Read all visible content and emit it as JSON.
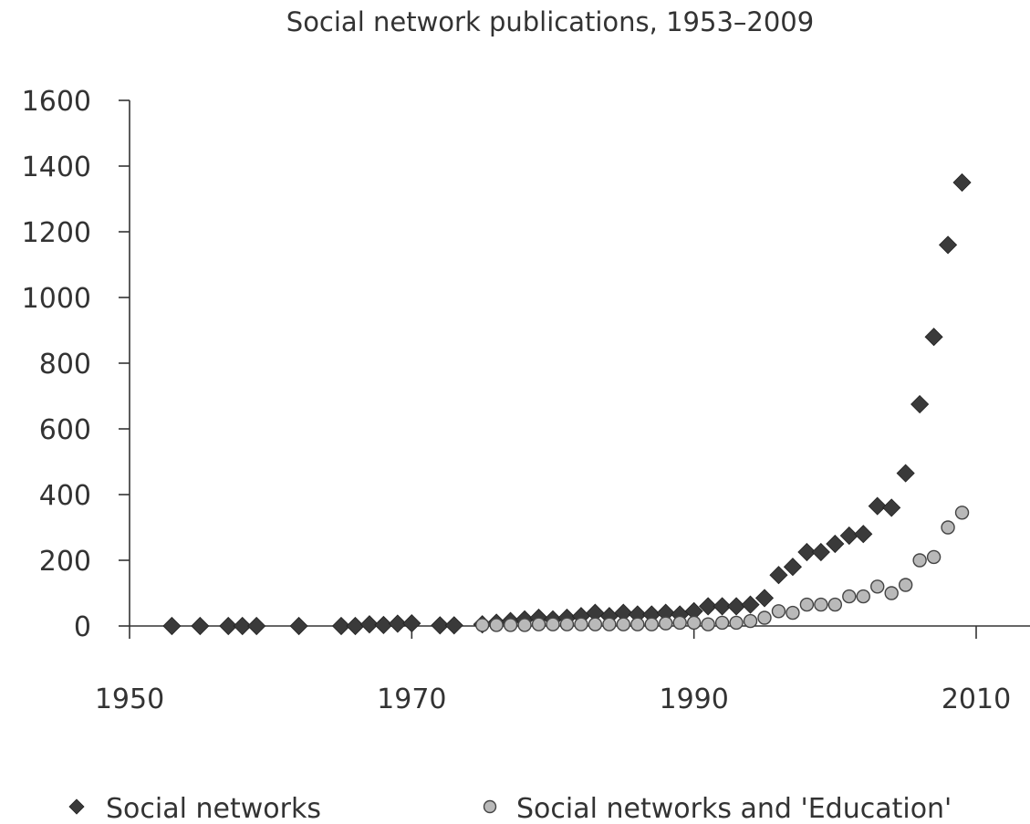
{
  "chart_data": {
    "type": "scatter",
    "title": "Social network publications, 1953–2009",
    "xlabel": "",
    "ylabel": "",
    "xlim": [
      1950,
      2015
    ],
    "ylim": [
      0,
      1600
    ],
    "x_ticks": [
      1950,
      1970,
      1990,
      2010
    ],
    "y_ticks": [
      0,
      200,
      400,
      600,
      800,
      1000,
      1200,
      1400,
      1600
    ],
    "grid": false,
    "legend_position": "bottom",
    "series": [
      {
        "name": "Social networks",
        "marker": "diamond",
        "color": "#3a3a3a",
        "points": [
          [
            1953,
            0
          ],
          [
            1955,
            0
          ],
          [
            1957,
            0
          ],
          [
            1958,
            0
          ],
          [
            1959,
            0
          ],
          [
            1962,
            0
          ],
          [
            1965,
            0
          ],
          [
            1966,
            0
          ],
          [
            1967,
            5
          ],
          [
            1968,
            3
          ],
          [
            1969,
            7
          ],
          [
            1970,
            8
          ],
          [
            1972,
            2
          ],
          [
            1973,
            2
          ],
          [
            1975,
            5
          ],
          [
            1976,
            10
          ],
          [
            1977,
            15
          ],
          [
            1978,
            20
          ],
          [
            1979,
            25
          ],
          [
            1980,
            20
          ],
          [
            1981,
            25
          ],
          [
            1982,
            30
          ],
          [
            1983,
            40
          ],
          [
            1984,
            30
          ],
          [
            1985,
            40
          ],
          [
            1986,
            35
          ],
          [
            1987,
            35
          ],
          [
            1988,
            40
          ],
          [
            1989,
            35
          ],
          [
            1990,
            45
          ],
          [
            1991,
            60
          ],
          [
            1992,
            60
          ],
          [
            1993,
            60
          ],
          [
            1994,
            65
          ],
          [
            1995,
            85
          ],
          [
            1996,
            155
          ],
          [
            1997,
            180
          ],
          [
            1998,
            225
          ],
          [
            1999,
            225
          ],
          [
            2000,
            250
          ],
          [
            2001,
            275
          ],
          [
            2002,
            280
          ],
          [
            2003,
            365
          ],
          [
            2004,
            360
          ],
          [
            2005,
            465
          ],
          [
            2006,
            675
          ],
          [
            2007,
            880
          ],
          [
            2008,
            1160
          ],
          [
            2009,
            1350
          ]
        ]
      },
      {
        "name": "Social networks and 'Education'",
        "marker": "circle",
        "color": "#b9b9b9",
        "points": [
          [
            1975,
            3
          ],
          [
            1976,
            3
          ],
          [
            1977,
            3
          ],
          [
            1978,
            3
          ],
          [
            1979,
            5
          ],
          [
            1980,
            5
          ],
          [
            1981,
            5
          ],
          [
            1982,
            5
          ],
          [
            1983,
            5
          ],
          [
            1984,
            5
          ],
          [
            1985,
            5
          ],
          [
            1986,
            5
          ],
          [
            1987,
            5
          ],
          [
            1988,
            8
          ],
          [
            1989,
            10
          ],
          [
            1990,
            10
          ],
          [
            1991,
            5
          ],
          [
            1992,
            10
          ],
          [
            1993,
            10
          ],
          [
            1994,
            15
          ],
          [
            1995,
            25
          ],
          [
            1996,
            45
          ],
          [
            1997,
            40
          ],
          [
            1998,
            65
          ],
          [
            1999,
            65
          ],
          [
            2000,
            65
          ],
          [
            2001,
            90
          ],
          [
            2002,
            90
          ],
          [
            2003,
            120
          ],
          [
            2004,
            100
          ],
          [
            2005,
            125
          ],
          [
            2006,
            200
          ],
          [
            2007,
            210
          ],
          [
            2008,
            300
          ],
          [
            2009,
            345
          ]
        ]
      }
    ],
    "annotations": []
  }
}
